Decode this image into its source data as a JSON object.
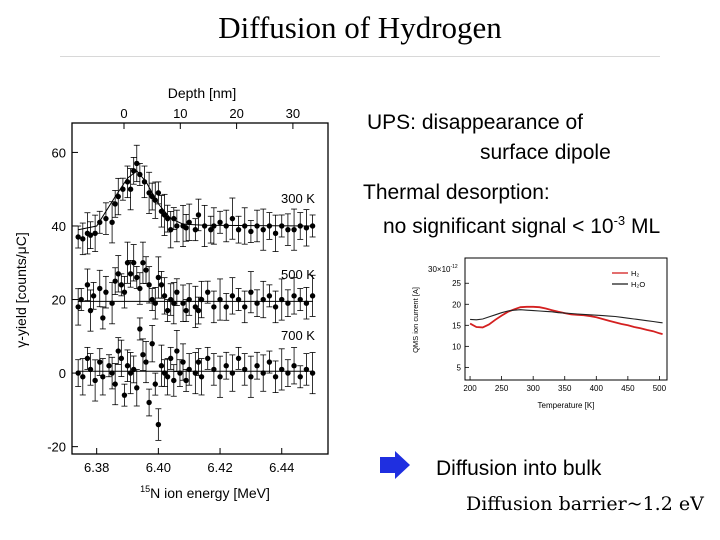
{
  "slide": {
    "title": "Diffusion of Hydrogen",
    "ups_line1": "UPS: disappearance of",
    "ups_line2": "surface dipole",
    "td_line1": "Thermal desorption:",
    "td_line2_pre": "no significant signal < 10",
    "td_line2_exp": "-3",
    "td_line2_post": " ML",
    "diffusion_text": "Diffusion into bulk",
    "barrier_text": "Diffusion barrier~1.2 eV",
    "arrow_icon": "right-arrow-icon",
    "arrow_color": "#1f2fe0"
  },
  "chart_data": [
    {
      "type": "scatter",
      "title": "",
      "xlabel": "¹⁵N ion energy [MeV]",
      "x_label_sup": "15",
      "x_label_main": "N ion energy [MeV]",
      "ylabel": "γ-yield [counts/μC]",
      "top_axis_label": "Depth [nm]",
      "top_axis_ticks": [
        0,
        10,
        20,
        30
      ],
      "x_ticks": [
        "6.38",
        "6.40",
        "6.42",
        "6.44"
      ],
      "y_ticks": [
        "60",
        "40",
        "20",
        "0",
        "-20"
      ],
      "xlim": [
        6.372,
        6.455
      ],
      "ylim": [
        -22,
        68
      ],
      "grid": false,
      "series": [
        {
          "name": "300 K",
          "points": [
            [
              6.374,
              37
            ],
            [
              6.3755,
              36.5
            ],
            [
              6.377,
              38
            ],
            [
              6.378,
              37.5
            ],
            [
              6.3795,
              38
            ],
            [
              6.381,
              41
            ],
            [
              6.383,
              42
            ],
            [
              6.385,
              41
            ],
            [
              6.386,
              46
            ],
            [
              6.387,
              48
            ],
            [
              6.3885,
              50
            ],
            [
              6.39,
              52
            ],
            [
              6.391,
              50
            ],
            [
              6.392,
              55
            ],
            [
              6.393,
              57
            ],
            [
              6.394,
              54
            ],
            [
              6.3955,
              52
            ],
            [
              6.397,
              49
            ],
            [
              6.398,
              48
            ],
            [
              6.399,
              47
            ],
            [
              6.4,
              49
            ],
            [
              6.401,
              44
            ],
            [
              6.402,
              43
            ],
            [
              6.403,
              42
            ],
            [
              6.404,
              39
            ],
            [
              6.405,
              42
            ],
            [
              6.406,
              40
            ],
            [
              6.408,
              40
            ],
            [
              6.409,
              39.5
            ],
            [
              6.41,
              41
            ],
            [
              6.412,
              39
            ],
            [
              6.413,
              43
            ],
            [
              6.415,
              40
            ],
            [
              6.417,
              39
            ],
            [
              6.418,
              40
            ],
            [
              6.42,
              41
            ],
            [
              6.422,
              40
            ],
            [
              6.424,
              42
            ],
            [
              6.426,
              39
            ],
            [
              6.428,
              40
            ],
            [
              6.43,
              38.5
            ],
            [
              6.432,
              40
            ],
            [
              6.434,
              39
            ],
            [
              6.436,
              40
            ],
            [
              6.438,
              38
            ],
            [
              6.44,
              40
            ],
            [
              6.442,
              39
            ],
            [
              6.444,
              39
            ],
            [
              6.446,
              40
            ],
            [
              6.448,
              39.5
            ],
            [
              6.45,
              40
            ]
          ],
          "fit": [
            [
              6.374,
              39
            ],
            [
              6.38,
              40
            ],
            [
              6.386,
              48
            ],
            [
              6.39,
              53
            ],
            [
              6.393,
              55
            ],
            [
              6.396,
              52
            ],
            [
              6.4,
              46
            ],
            [
              6.404,
              42
            ],
            [
              6.408,
              40.5
            ],
            [
              6.415,
              40.2
            ],
            [
              6.45,
              40
            ]
          ]
        },
        {
          "name": "500 K",
          "points": [
            [
              6.374,
              18
            ],
            [
              6.375,
              20
            ],
            [
              6.377,
              24
            ],
            [
              6.378,
              17
            ],
            [
              6.379,
              21
            ],
            [
              6.381,
              23
            ],
            [
              6.382,
              15
            ],
            [
              6.383,
              22
            ],
            [
              6.385,
              19
            ],
            [
              6.386,
              25
            ],
            [
              6.387,
              27
            ],
            [
              6.388,
              24
            ],
            [
              6.389,
              22
            ],
            [
              6.39,
              30
            ],
            [
              6.391,
              27
            ],
            [
              6.392,
              30
            ],
            [
              6.393,
              26
            ],
            [
              6.394,
              23
            ],
            [
              6.395,
              30
            ],
            [
              6.396,
              28
            ],
            [
              6.397,
              24
            ],
            [
              6.398,
              20
            ],
            [
              6.399,
              19
            ],
            [
              6.4,
              26
            ],
            [
              6.401,
              24
            ],
            [
              6.402,
              21
            ],
            [
              6.403,
              17
            ],
            [
              6.404,
              20
            ],
            [
              6.405,
              19
            ],
            [
              6.406,
              22
            ],
            [
              6.408,
              19
            ],
            [
              6.409,
              17
            ],
            [
              6.41,
              20
            ],
            [
              6.412,
              18
            ],
            [
              6.413,
              17
            ],
            [
              6.414,
              20
            ],
            [
              6.416,
              22
            ],
            [
              6.418,
              18
            ],
            [
              6.42,
              20
            ],
            [
              6.422,
              18
            ],
            [
              6.424,
              21
            ],
            [
              6.426,
              20
            ],
            [
              6.428,
              18
            ],
            [
              6.43,
              22
            ],
            [
              6.432,
              19
            ],
            [
              6.434,
              20
            ],
            [
              6.436,
              21
            ],
            [
              6.438,
              18
            ],
            [
              6.44,
              20
            ],
            [
              6.442,
              19
            ],
            [
              6.444,
              21
            ],
            [
              6.446,
              20
            ],
            [
              6.448,
              19
            ],
            [
              6.45,
              21
            ]
          ],
          "fit": [
            [
              6.374,
              19.5
            ],
            [
              6.45,
              19.5
            ]
          ]
        },
        {
          "name": "700 K",
          "points": [
            [
              6.374,
              0
            ],
            [
              6.3755,
              -1
            ],
            [
              6.377,
              4
            ],
            [
              6.378,
              1
            ],
            [
              6.3795,
              -2
            ],
            [
              6.381,
              3
            ],
            [
              6.382,
              -1
            ],
            [
              6.384,
              2
            ],
            [
              6.385,
              0
            ],
            [
              6.386,
              -3
            ],
            [
              6.387,
              6
            ],
            [
              6.388,
              4
            ],
            [
              6.389,
              -6
            ],
            [
              6.39,
              2
            ],
            [
              6.391,
              0
            ],
            [
              6.392,
              1
            ],
            [
              6.393,
              -4
            ],
            [
              6.394,
              12
            ],
            [
              6.395,
              5
            ],
            [
              6.396,
              3
            ],
            [
              6.397,
              -8
            ],
            [
              6.398,
              8
            ],
            [
              6.399,
              -3
            ],
            [
              6.4,
              -14
            ],
            [
              6.401,
              2
            ],
            [
              6.402,
              0
            ],
            [
              6.403,
              -1
            ],
            [
              6.404,
              4
            ],
            [
              6.405,
              -2
            ],
            [
              6.406,
              6
            ],
            [
              6.407,
              0
            ],
            [
              6.408,
              3
            ],
            [
              6.409,
              -2
            ],
            [
              6.41,
              1
            ],
            [
              6.412,
              0
            ],
            [
              6.413,
              3
            ],
            [
              6.414,
              -1
            ],
            [
              6.416,
              4
            ],
            [
              6.418,
              1
            ],
            [
              6.42,
              -1
            ],
            [
              6.422,
              2
            ],
            [
              6.424,
              0
            ],
            [
              6.426,
              4
            ],
            [
              6.428,
              1
            ],
            [
              6.43,
              -1
            ],
            [
              6.432,
              2
            ],
            [
              6.434,
              0
            ],
            [
              6.436,
              3
            ],
            [
              6.438,
              -1
            ],
            [
              6.44,
              1
            ],
            [
              6.442,
              0
            ],
            [
              6.444,
              2
            ],
            [
              6.446,
              -1
            ],
            [
              6.448,
              1
            ],
            [
              6.45,
              0
            ]
          ],
          "fit": [
            [
              6.374,
              0.5
            ],
            [
              6.45,
              0.5
            ]
          ]
        }
      ]
    },
    {
      "type": "line",
      "title": "",
      "xlabel": "Temperature [K]",
      "ylabel": "QMS ion current [A]",
      "y_multiplier": "30×10⁻¹²",
      "y_mult_base": "30×10",
      "y_mult_exp": "-12",
      "x_ticks": [
        "200",
        "250",
        "300",
        "350",
        "400",
        "450",
        "500"
      ],
      "y_ticks": [
        "25",
        "20",
        "15",
        "10",
        "5"
      ],
      "xlim": [
        192,
        512
      ],
      "ylim": [
        2,
        31
      ],
      "grid": false,
      "legend_position": "top-right",
      "series": [
        {
          "name": "H₂",
          "color": "#d42020",
          "x": [
            200,
            210,
            220,
            230,
            240,
            250,
            260,
            270,
            280,
            290,
            300,
            310,
            320,
            330,
            340,
            350,
            360,
            370,
            380,
            390,
            400,
            410,
            420,
            430,
            440,
            450,
            460,
            470,
            480,
            490,
            500,
            505
          ],
          "y": [
            15.4,
            14.6,
            14.5,
            15.2,
            16.3,
            17.3,
            18.2,
            18.8,
            19.3,
            19.4,
            19.4,
            19.3,
            19.0,
            18.6,
            18.2,
            17.9,
            17.6,
            17.5,
            17.4,
            17.2,
            16.9,
            16.5,
            16.1,
            15.7,
            15.3,
            15.0,
            14.6,
            14.3,
            13.9,
            13.6,
            13.1,
            12.9
          ]
        },
        {
          "name": "H₂O",
          "color": "#222222",
          "x": [
            200,
            210,
            220,
            230,
            240,
            250,
            260,
            270,
            280,
            290,
            300,
            310,
            320,
            330,
            340,
            350,
            360,
            370,
            380,
            390,
            400,
            410,
            420,
            430,
            440,
            450,
            460,
            470,
            480,
            490,
            500,
            505
          ],
          "y": [
            16.4,
            16.3,
            16.5,
            17.0,
            17.5,
            18.0,
            18.4,
            18.6,
            18.7,
            18.6,
            18.5,
            18.4,
            18.3,
            18.2,
            18.0,
            17.9,
            17.8,
            17.7,
            17.6,
            17.5,
            17.4,
            17.3,
            17.2,
            17.1,
            16.9,
            16.7,
            16.5,
            16.3,
            16.1,
            15.9,
            15.7,
            15.6
          ]
        }
      ]
    }
  ]
}
